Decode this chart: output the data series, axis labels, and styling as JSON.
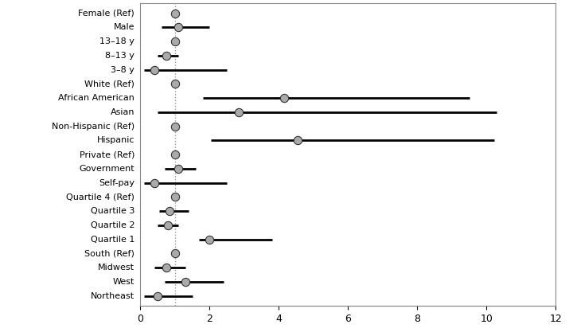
{
  "categories": [
    "Female (Ref)",
    "Male",
    "13–18 y",
    "8–13 y",
    "3–8 y",
    "White (Ref)",
    "African American",
    "Asian",
    "Non-Hispanic (Ref)",
    "Hispanic",
    "Private (Ref)",
    "Government",
    "Self-pay",
    "Quartile 4 (Ref)",
    "Quartile 3",
    "Quartile 2",
    "Quartile 1",
    "South (Ref)",
    "Midwest",
    "West",
    "Northeast"
  ],
  "or": [
    1.0,
    1.1,
    1.0,
    0.75,
    0.4,
    1.0,
    4.15,
    2.85,
    1.0,
    4.55,
    1.0,
    1.1,
    0.4,
    1.0,
    0.85,
    0.8,
    2.0,
    1.0,
    0.75,
    1.3,
    0.5
  ],
  "ci_low": [
    1.0,
    0.6,
    1.0,
    0.5,
    0.1,
    1.0,
    1.81,
    0.5,
    1.0,
    2.03,
    1.0,
    0.7,
    0.1,
    1.0,
    0.55,
    0.5,
    1.7,
    1.0,
    0.4,
    0.7,
    0.1
  ],
  "ci_high": [
    1.0,
    2.0,
    1.0,
    1.1,
    2.5,
    1.0,
    9.5,
    10.3,
    1.0,
    10.22,
    1.0,
    1.6,
    2.5,
    1.0,
    1.4,
    1.1,
    3.8,
    1.0,
    1.3,
    2.4,
    1.5
  ],
  "is_ref": [
    true,
    false,
    true,
    false,
    false,
    true,
    false,
    false,
    true,
    false,
    true,
    false,
    false,
    true,
    false,
    false,
    false,
    true,
    false,
    false,
    false
  ],
  "ref_line": 1.0,
  "xlim": [
    0,
    12
  ],
  "xticks": [
    0,
    2,
    4,
    6,
    8,
    10,
    12
  ],
  "circle_color": "#aaaaaa",
  "circle_edge_color": "#333333",
  "line_color": "#000000",
  "ref_line_color": "#999999",
  "bg_color": "#ffffff",
  "circle_size": 55,
  "linewidth": 2.0,
  "label_fontsize": 8,
  "tick_fontsize": 9
}
